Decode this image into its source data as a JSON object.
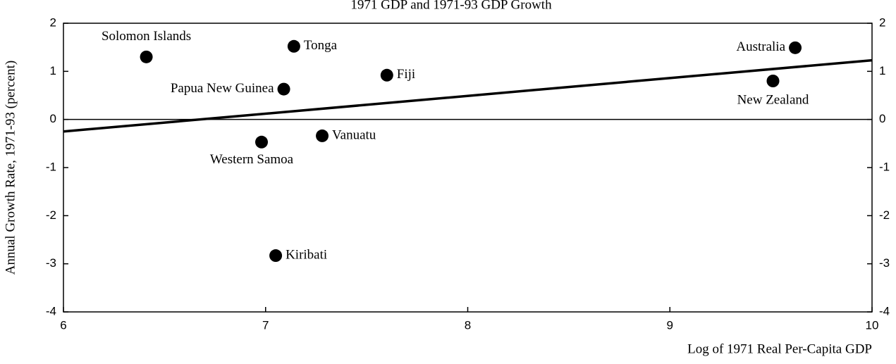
{
  "chart_data": {
    "type": "scatter",
    "title": "1971 GDP and 1971-93 GDP Growth",
    "x_label": "Log of 1971 Real Per-Capita GDP",
    "y_label": "Annual Growth Rate, 1971-93 (percent)",
    "categories": [
      "Solomon Islands",
      "Tonga",
      "Fiji",
      "Papua New Guinea",
      "Australia",
      "New Zealand",
      "Vanuatu",
      "Western Samoa",
      "Kiribati"
    ],
    "x": [
      6.41,
      7.14,
      7.6,
      7.09,
      9.62,
      9.51,
      7.28,
      6.98,
      7.05
    ],
    "values": [
      1.3,
      1.52,
      0.92,
      0.63,
      1.49,
      0.8,
      -0.34,
      -0.47,
      -2.83
    ],
    "color": "#000000",
    "fit_line": {
      "x": [
        6,
        10
      ],
      "y": [
        -0.25,
        1.23
      ]
    },
    "xlim": [
      6,
      10
    ],
    "xticks": [
      6,
      7,
      8,
      9,
      10
    ],
    "ylim": [
      -4,
      2
    ],
    "yticks": [
      -4,
      -3,
      -2,
      -1,
      0,
      1,
      2
    ],
    "y2lim": [
      -4,
      2
    ],
    "y2ticks": [
      -4,
      -3,
      -2,
      -1,
      0,
      1,
      2
    ]
  }
}
